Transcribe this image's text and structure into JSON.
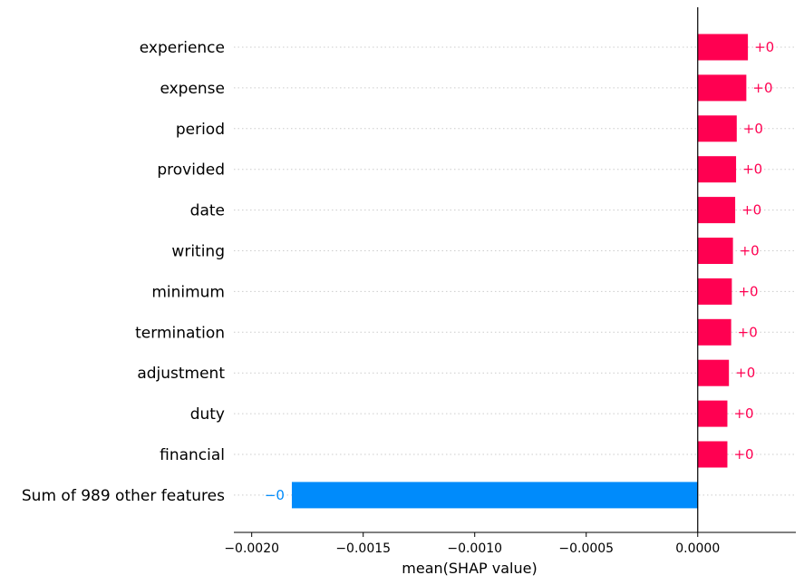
{
  "chart_data": {
    "type": "bar",
    "orientation": "horizontal",
    "xlabel": "mean(SHAP value)",
    "xlim": [
      -0.00208,
      0.00044
    ],
    "xticks": [
      "-0.0020",
      "-0.0015",
      "-0.0010",
      "-0.0005",
      "0.0000"
    ],
    "xtick_values": [
      -0.002,
      -0.0015,
      -0.001,
      -0.0005,
      0.0
    ],
    "grid": "dotted horizontal guide lines per feature",
    "positive_color": "#ff0051",
    "negative_color": "#008bfb",
    "bars": [
      {
        "feature": "experience",
        "value": 0.000225,
        "label": "+0"
      },
      {
        "feature": "expense",
        "value": 0.000218,
        "label": "+0"
      },
      {
        "feature": "period",
        "value": 0.000175,
        "label": "+0"
      },
      {
        "feature": "provided",
        "value": 0.000172,
        "label": "+0"
      },
      {
        "feature": "date",
        "value": 0.000168,
        "label": "+0"
      },
      {
        "feature": "writing",
        "value": 0.000158,
        "label": "+0"
      },
      {
        "feature": "minimum",
        "value": 0.000153,
        "label": "+0"
      },
      {
        "feature": "termination",
        "value": 0.00015,
        "label": "+0"
      },
      {
        "feature": "adjustment",
        "value": 0.00014,
        "label": "+0"
      },
      {
        "feature": "duty",
        "value": 0.000133,
        "label": "+0"
      },
      {
        "feature": "financial",
        "value": 0.000133,
        "label": "+0"
      },
      {
        "feature": "Sum of 989 other features",
        "value": -0.00182,
        "label": "−0"
      }
    ]
  }
}
